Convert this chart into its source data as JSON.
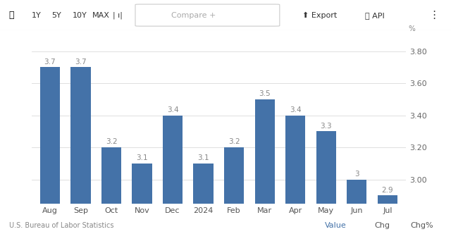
{
  "categories": [
    "Aug",
    "Sep",
    "Oct",
    "Nov",
    "Dec",
    "2024",
    "Feb",
    "Mar",
    "Apr",
    "May",
    "Jun",
    "Jul"
  ],
  "values": [
    3.7,
    3.7,
    3.2,
    3.1,
    3.4,
    3.1,
    3.2,
    3.5,
    3.4,
    3.3,
    3.0,
    2.9
  ],
  "bar_color": "#4472a8",
  "bar_color_light": "#5b8ec4",
  "ylim_min": 2.85,
  "ylim_max": 3.9,
  "yticks": [
    3.0,
    3.2,
    3.4,
    3.6,
    3.8
  ],
  "toolbar_bg": "#f8f8f8",
  "toolbar_text": [
    "1Y",
    "5Y",
    "10Y",
    "MAX"
  ],
  "source_text": "U.S. Bureau of Labor Statistics",
  "footer_right": [
    "Value",
    "Chg",
    "Chg%"
  ],
  "percent_label": "%",
  "background_color": "#ffffff",
  "grid_color": "#e0e0e0",
  "bar_label_color": "#888888",
  "bar_label_fontsize": 7.5,
  "tick_fontsize": 8,
  "source_fontsize": 7,
  "footer_fontsize": 8
}
